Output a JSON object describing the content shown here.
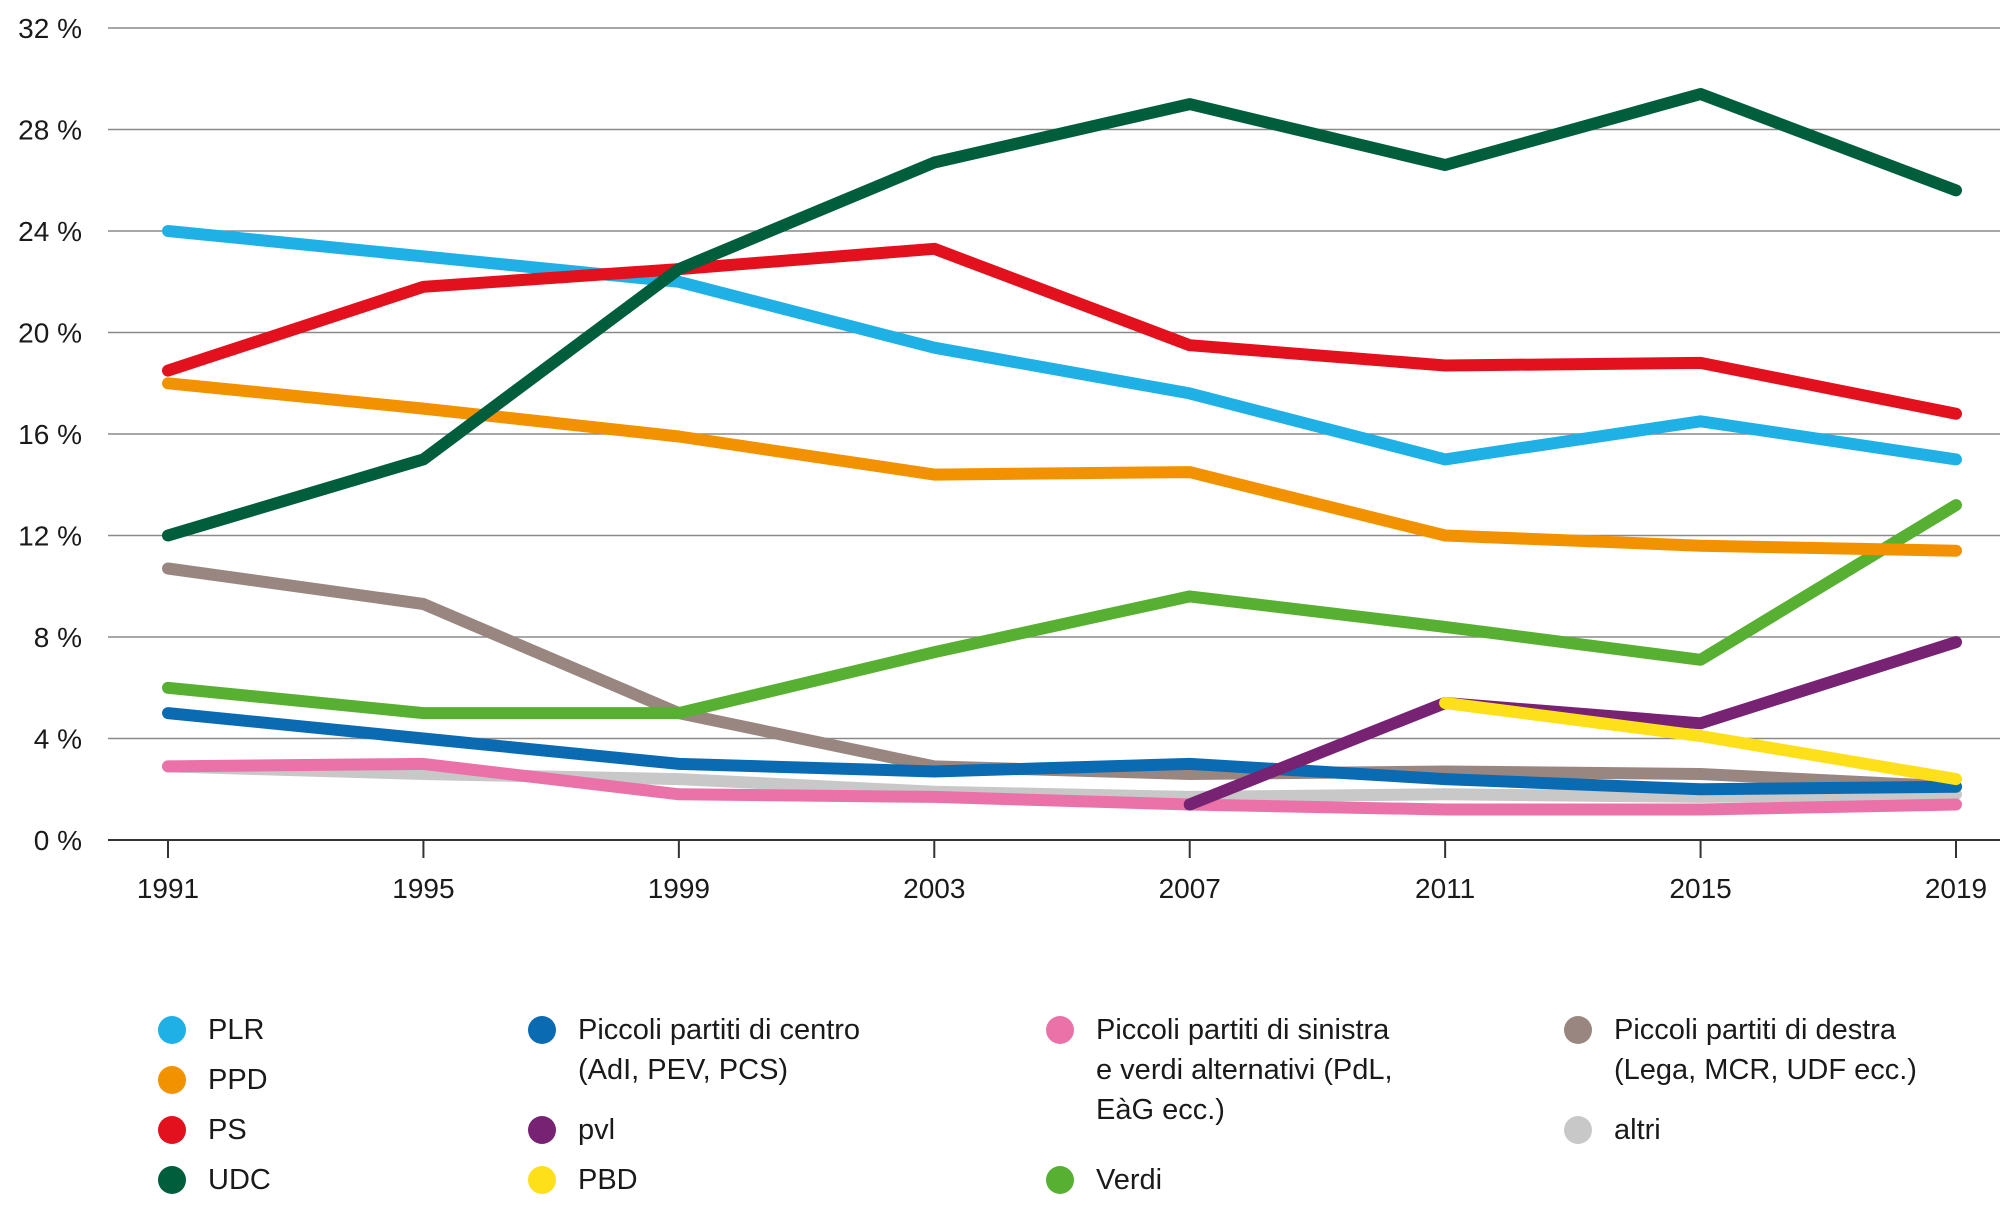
{
  "chart_data": {
    "type": "line",
    "x": [
      "1991",
      "1995",
      "1999",
      "2003",
      "2007",
      "2011",
      "2015",
      "2019"
    ],
    "ylim": [
      0,
      32
    ],
    "yticks": [
      {
        "value": 0,
        "label": "0 %"
      },
      {
        "value": 4,
        "label": "4 %"
      },
      {
        "value": 8,
        "label": "8 %"
      },
      {
        "value": 12,
        "label": "12 %"
      },
      {
        "value": 16,
        "label": "16 %"
      },
      {
        "value": 20,
        "label": "20 %"
      },
      {
        "value": 24,
        "label": "24 %"
      },
      {
        "value": 28,
        "label": "28 %"
      },
      {
        "value": 32,
        "label": "32 %"
      }
    ],
    "grid": true,
    "legend_position": "bottom",
    "series": [
      {
        "name": "altri",
        "color": "#c8c8c8",
        "values": [
          2.9,
          2.6,
          2.4,
          1.9,
          1.7,
          1.8,
          1.7,
          1.8
        ]
      },
      {
        "name": "Piccoli partiti di destra\n(Lega, MCR, UDF ecc.)",
        "color": "#9a8680",
        "values": [
          10.7,
          9.3,
          5.0,
          2.9,
          2.6,
          2.7,
          2.6,
          2.1
        ]
      },
      {
        "name": "Piccoli partiti di centro\n(AdI, PEV, PCS)",
        "color": "#0a6bb3",
        "values": [
          5.0,
          4.0,
          3.0,
          2.7,
          3.0,
          2.4,
          2.0,
          2.1
        ]
      },
      {
        "name": "Piccoli partiti di sinistra\ne verdi alternativi (PdL,\nEàG ecc.)",
        "color": "#ea72a8",
        "values": [
          2.9,
          3.0,
          1.8,
          1.7,
          1.4,
          1.2,
          1.2,
          1.4
        ]
      },
      {
        "name": "pvl",
        "color": "#772273",
        "values": [
          null,
          null,
          null,
          null,
          1.4,
          5.4,
          4.6,
          7.8
        ]
      },
      {
        "name": "PBD",
        "color": "#fde01a",
        "values": [
          null,
          null,
          null,
          null,
          null,
          5.4,
          4.1,
          2.4
        ]
      },
      {
        "name": "Verdi",
        "color": "#58b033",
        "values": [
          6.0,
          5.0,
          5.0,
          7.4,
          9.6,
          8.4,
          7.1,
          13.2
        ]
      },
      {
        "name": "PPD",
        "color": "#f39200",
        "values": [
          18.0,
          17.0,
          15.9,
          14.4,
          14.5,
          12.0,
          11.6,
          11.4
        ]
      },
      {
        "name": "PLR",
        "color": "#1fb1e6",
        "values": [
          24.0,
          23.0,
          22.0,
          19.4,
          17.6,
          15.0,
          16.5,
          15.0
        ]
      },
      {
        "name": "PS",
        "color": "#e3101d",
        "values": [
          18.5,
          21.8,
          22.5,
          23.3,
          19.5,
          18.7,
          18.8,
          16.8
        ]
      },
      {
        "name": "UDC",
        "color": "#005e3c",
        "values": [
          12.0,
          15.0,
          22.5,
          26.7,
          29.0,
          26.6,
          29.4,
          25.6
        ]
      }
    ]
  },
  "legend": [
    {
      "key": "plr",
      "label": "PLR",
      "color": "#1fb1e6"
    },
    {
      "key": "ppd",
      "label": "PPD",
      "color": "#f39200"
    },
    {
      "key": "ps",
      "label": "PS",
      "color": "#e3101d"
    },
    {
      "key": "udc",
      "label": "UDC",
      "color": "#005e3c"
    },
    {
      "key": "centro",
      "label": "Piccoli partiti di centro\n(AdI, PEV, PCS)",
      "color": "#0a6bb3"
    },
    {
      "key": "pvl",
      "label": "pvl",
      "color": "#772273"
    },
    {
      "key": "pbd",
      "label": "PBD",
      "color": "#fde01a"
    },
    {
      "key": "sinistra",
      "label": "Piccoli partiti di sinistra\ne verdi alternativi (PdL,\nEàG ecc.)",
      "color": "#ea72a8"
    },
    {
      "key": "verdi",
      "label": "Verdi",
      "color": "#58b033"
    },
    {
      "key": "destra",
      "label": "Piccoli partiti di destra\n(Lega, MCR, UDF ecc.)",
      "color": "#9a8680"
    },
    {
      "key": "altri",
      "label": "altri",
      "color": "#c8c8c8"
    }
  ]
}
